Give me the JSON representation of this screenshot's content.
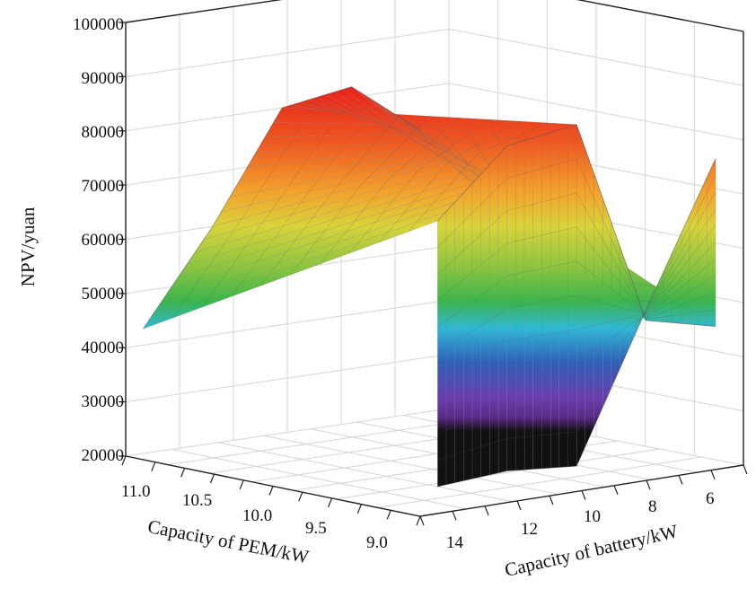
{
  "chart_data": {
    "type": "surface",
    "title": "",
    "zlabel": "NPV/yuan",
    "xlabel": "Capacity of PEM/kW",
    "ylabel": "Capacity of battery/kW",
    "zlim": [
      20000,
      100000
    ],
    "z_ticks": [
      "20000",
      "30000",
      "40000",
      "50000",
      "60000",
      "70000",
      "80000",
      "90000",
      "100000"
    ],
    "pem_ticks": [
      "11.0",
      "10.5",
      "10.0",
      "9.5",
      "9.0"
    ],
    "battery_ticks": [
      "14",
      "12",
      "10",
      "8",
      "6"
    ],
    "grid": true,
    "colormap": "rainbow",
    "profiles": [
      {
        "pem": 11.3,
        "battery": [
          14,
          12,
          10,
          8,
          6
        ],
        "npv": [
          43000,
          60000,
          80000,
          82000,
          72000
        ]
      },
      {
        "pem": 9.0,
        "battery": [
          14,
          12,
          10,
          8,
          6
        ],
        "npv": [
          74000,
          86000,
          88000,
          50000,
          47000
        ]
      },
      {
        "pem": 9.0,
        "battery": [
          14,
          12,
          10,
          8,
          6
        ],
        "npv": [
          25000,
          26000,
          25000,
          52000,
          78000
        ]
      }
    ]
  }
}
